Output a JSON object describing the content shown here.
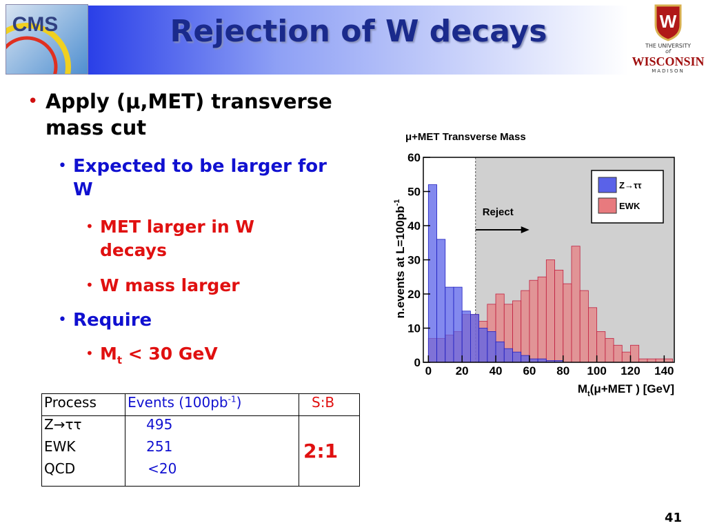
{
  "header": {
    "title": "Rejection of W decays",
    "left_logo": "CMS",
    "right_logo": {
      "top": "THE UNIVERSITY",
      "of": "of",
      "name": "WISCONSIN",
      "city": "MADISON"
    }
  },
  "bullets": {
    "b1": "Apply (μ,MET) transverse mass cut",
    "b1a": "Expected to be larger for W",
    "b1a1": "MET larger in W decays",
    "b1a2": "W mass larger",
    "b1b": "Require",
    "b1b1": {
      "main": "M",
      "sub": "t",
      "rest": " < 30 GeV"
    }
  },
  "table": {
    "header": {
      "process": "Process",
      "events": {
        "main": "Events (100pb",
        "sup": "-1",
        "end": ")"
      },
      "sb": "S:B"
    },
    "rows": [
      [
        "Z→ττ",
        "495"
      ],
      [
        "EWK",
        "251"
      ],
      [
        "QCD",
        "<20"
      ]
    ],
    "sb_value": "2:1"
  },
  "slide_number": "41",
  "chart": {
    "type": "histogram",
    "title": "μ+MET Transverse Mass",
    "y_label": {
      "main": "n.events at L=100pb",
      "sup": "-1"
    },
    "x_label": {
      "main": "M",
      "sub": "t",
      "rest": "(μ+MET ) [GeV]"
    },
    "annotation": "Reject",
    "reject_from": 28,
    "bins": [
      0,
      5,
      10,
      15,
      20,
      25,
      30,
      35,
      40,
      45,
      50,
      55,
      60,
      65,
      70,
      75,
      80,
      85,
      90,
      95,
      100,
      105,
      110,
      115,
      120,
      125,
      130,
      135,
      140,
      145
    ],
    "series": [
      {
        "name": "EWK",
        "color": "#e87a7e",
        "values": [
          7,
          7,
          8,
          9,
          14,
          14,
          12,
          17,
          20,
          17,
          18,
          21,
          24,
          25,
          30,
          27,
          23,
          34,
          21,
          16,
          9,
          7,
          5,
          3,
          5,
          1,
          1,
          1,
          1
        ]
      },
      {
        "name": "Z→ττ",
        "color": "#5a62e8",
        "values": [
          52,
          36,
          22,
          22,
          15,
          14,
          10,
          9,
          6,
          4,
          3,
          2,
          1,
          1,
          0.5,
          0.5,
          0,
          0,
          0,
          0,
          0,
          0,
          0,
          0,
          0,
          0,
          0,
          0,
          0
        ]
      }
    ],
    "xlim": [
      -3,
      146
    ],
    "ylim": [
      0,
      60
    ],
    "xticks": [
      0,
      20,
      40,
      60,
      80,
      100,
      120,
      140
    ],
    "yticks": [
      0,
      10,
      20,
      30,
      40,
      50,
      60
    ]
  }
}
